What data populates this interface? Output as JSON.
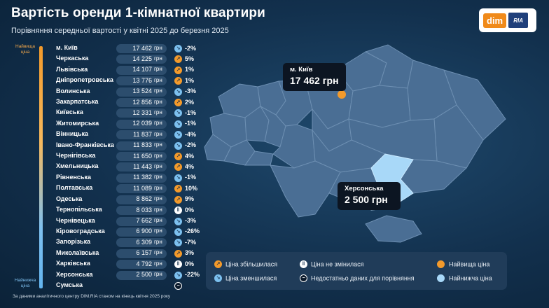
{
  "header": {
    "title": "Вартість оренди 1-кімнатної квартири",
    "subtitle": "Порівняння середньої вартості у квітні 2025 до березня 2025"
  },
  "logo": {
    "dim": "dim",
    "ria": "RIA"
  },
  "scale": {
    "top_label": "Найвища ціна",
    "bottom_label": "Найнижча ціна"
  },
  "currency": "грн",
  "colors": {
    "increase": "#f39a2b",
    "decrease": "#7cc0ef",
    "highest": "#f39a2b",
    "lowest": "#a8d8f8",
    "map_region": "#4a6e94"
  },
  "chart_data": {
    "type": "table",
    "columns": [
      "region",
      "price_uah",
      "change"
    ],
    "rows": [
      {
        "region": "м. Київ",
        "price": "17 462",
        "value": 17462,
        "trend": "down",
        "change": "-2%"
      },
      {
        "region": "Черкаська",
        "price": "14 225",
        "value": 14225,
        "trend": "up",
        "change": "5%"
      },
      {
        "region": "Львівська",
        "price": "14 107",
        "value": 14107,
        "trend": "up",
        "change": "1%"
      },
      {
        "region": "Дніпропетровська",
        "price": "13 776",
        "value": 13776,
        "trend": "up",
        "change": "1%"
      },
      {
        "region": "Волинська",
        "price": "13 524",
        "value": 13524,
        "trend": "down",
        "change": "-3%"
      },
      {
        "region": "Закарпатська",
        "price": "12 856",
        "value": 12856,
        "trend": "up",
        "change": "2%"
      },
      {
        "region": "Київська",
        "price": "12 331",
        "value": 12331,
        "trend": "down",
        "change": "-1%"
      },
      {
        "region": "Житомирська",
        "price": "12 039",
        "value": 12039,
        "trend": "down",
        "change": "-1%"
      },
      {
        "region": "Вінницька",
        "price": "11 837",
        "value": 11837,
        "trend": "down",
        "change": "-4%"
      },
      {
        "region": "Івано-Франківська",
        "price": "11 833",
        "value": 11833,
        "trend": "down",
        "change": "-2%"
      },
      {
        "region": "Чернігівська",
        "price": "11 650",
        "value": 11650,
        "trend": "up",
        "change": "4%"
      },
      {
        "region": "Хмельницька",
        "price": "11 443",
        "value": 11443,
        "trend": "up",
        "change": "4%"
      },
      {
        "region": "Рівненська",
        "price": "11 382",
        "value": 11382,
        "trend": "down",
        "change": "-1%"
      },
      {
        "region": "Полтавська",
        "price": "11 089",
        "value": 11089,
        "trend": "up",
        "change": "10%"
      },
      {
        "region": "Одеська",
        "price": "8 862",
        "value": 8862,
        "trend": "up",
        "change": "9%"
      },
      {
        "region": "Тернопільська",
        "price": "8 033",
        "value": 8033,
        "trend": "same",
        "change": "0%"
      },
      {
        "region": "Чернівецька",
        "price": "7 662",
        "value": 7662,
        "trend": "down",
        "change": "-3%"
      },
      {
        "region": "Кіровоградська",
        "price": "6 900",
        "value": 6900,
        "trend": "down",
        "change": "-26%"
      },
      {
        "region": "Запорізька",
        "price": "6 309",
        "value": 6309,
        "trend": "down",
        "change": "-7%"
      },
      {
        "region": "Миколаївська",
        "price": "6 157",
        "value": 6157,
        "trend": "up",
        "change": "3%"
      },
      {
        "region": "Харківська",
        "price": "4 792",
        "value": 4792,
        "trend": "same",
        "change": "0%"
      },
      {
        "region": "Херсонська",
        "price": "2 500",
        "value": 2500,
        "trend": "down",
        "change": "-22%"
      },
      {
        "region": "Сумська",
        "price": "",
        "value": null,
        "trend": "na",
        "change": ""
      }
    ]
  },
  "map": {
    "highest": {
      "name": "м. Київ",
      "value": "17 462 грн"
    },
    "lowest": {
      "name": "Херсонська",
      "value": "2 500 грн"
    }
  },
  "legend": {
    "increase": "Ціна збільшилася",
    "decrease": "Ціна зменшилася",
    "same": "Ціна не змінилася",
    "na": "Недостатньо даних для порівняння",
    "highest": "Найвища ціна",
    "lowest": "Найнижча ціна"
  },
  "footer": "За даними аналітичного центру DIM.RIA станом на кінець квітня 2025 року"
}
